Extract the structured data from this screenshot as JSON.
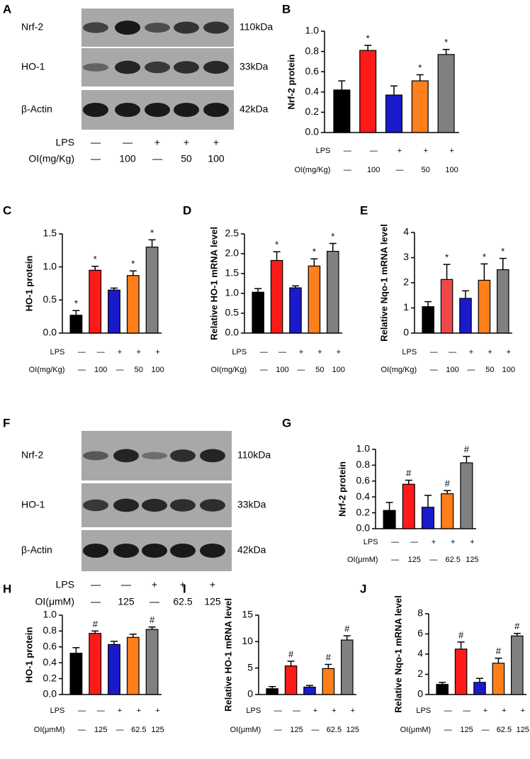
{
  "blots": [
    {
      "panel": "A",
      "rows": [
        {
          "label": "Nrf-2",
          "size": "110kDa"
        },
        {
          "label": "HO-1",
          "size": "33kDa"
        },
        {
          "label": "β-Actin",
          "size": "42kDa"
        }
      ],
      "conditions": [
        {
          "label": "LPS",
          "values": [
            "—",
            "—",
            "+",
            "+",
            "+"
          ]
        },
        {
          "label": "OI(mg/Kg)",
          "values": [
            "—",
            "100",
            "—",
            "50",
            "100"
          ]
        }
      ]
    },
    {
      "panel": "F",
      "rows": [
        {
          "label": "Nrf-2",
          "size": "110kDa"
        },
        {
          "label": "HO-1",
          "size": "33kDa"
        },
        {
          "label": "β-Actin",
          "size": "42kDa"
        }
      ],
      "conditions": [
        {
          "label": "LPS",
          "values": [
            "—",
            "—",
            "+",
            "+",
            "+"
          ]
        },
        {
          "label": "OI(μmM)",
          "values": [
            "—",
            "125",
            "—",
            "62.5",
            "125"
          ]
        }
      ]
    }
  ],
  "chart_data": [
    {
      "type": "bar",
      "panel": "B",
      "ylabel": "Nrf-2 protein",
      "colors": [
        "#000000",
        "#ff1a1a",
        "#1a1acc",
        "#ff7f1a",
        "#808080"
      ],
      "conditions": [
        {
          "label": "LPS",
          "values": [
            "—",
            "—",
            "+",
            "+",
            "+"
          ]
        },
        {
          "label": "OI(mg/Kg)",
          "values": [
            "—",
            "100",
            "—",
            "50",
            "100"
          ]
        }
      ],
      "values": [
        0.42,
        0.81,
        0.37,
        0.51,
        0.77
      ],
      "errors": [
        0.09,
        0.05,
        0.09,
        0.06,
        0.05
      ],
      "annotations": [
        null,
        "*",
        null,
        "*",
        "*"
      ],
      "ylim": [
        0,
        1.0
      ],
      "yticks": [
        {
          "value": 0,
          "label": "0.0"
        },
        0.2,
        0.4,
        0.6,
        0.8,
        {
          "value": 1.0,
          "label": "1.0"
        }
      ]
    },
    {
      "type": "bar",
      "panel": "C",
      "ylabel": "HO-1 protein",
      "colors": [
        "#000000",
        "#ff1a1a",
        "#1a1acc",
        "#ff7f1a",
        "#808080"
      ],
      "conditions": [
        {
          "label": "LPS",
          "values": [
            "—",
            "—",
            "+",
            "+",
            "+"
          ]
        },
        {
          "label": "OI(mg/Kg)",
          "values": [
            "—",
            "100",
            "—",
            "50",
            "100"
          ]
        }
      ],
      "values": [
        0.27,
        0.95,
        0.65,
        0.87,
        1.3
      ],
      "errors": [
        0.07,
        0.06,
        0.03,
        0.07,
        0.11
      ],
      "annotations": [
        "*",
        "*",
        null,
        "*",
        "*"
      ],
      "ylim": [
        0,
        1.5
      ],
      "yticks": [
        {
          "value": 0,
          "label": "0.0"
        },
        0.5,
        {
          "value": 1.0,
          "label": "1.0"
        },
        1.5
      ]
    },
    {
      "type": "bar",
      "panel": "D",
      "ylabel": "Relative HO-1 mRNA level",
      "colors": [
        "#000000",
        "#ff1a1a",
        "#1a1acc",
        "#ff7f1a",
        "#808080"
      ],
      "conditions": [
        {
          "label": "LPS",
          "values": [
            "—",
            "—",
            "+",
            "+",
            "+"
          ]
        },
        {
          "label": "OI(mg/Kg)",
          "values": [
            "—",
            "100",
            "—",
            "50",
            "100"
          ]
        }
      ],
      "values": [
        1.03,
        1.83,
        1.14,
        1.69,
        2.06
      ],
      "errors": [
        0.09,
        0.22,
        0.05,
        0.18,
        0.2
      ],
      "annotations": [
        null,
        "*",
        null,
        "*",
        "*"
      ],
      "ylim": [
        0,
        2.5
      ],
      "yticks": [
        {
          "value": 0,
          "label": "0.0"
        },
        0.5,
        {
          "value": 1.0,
          "label": "1.0"
        },
        1.5,
        {
          "value": 2.0,
          "label": "2.0"
        },
        2.5
      ]
    },
    {
      "type": "bar",
      "panel": "E",
      "ylabel": "Relative Nqo-1 mRNA level",
      "colors": [
        "#000000",
        "#f04848",
        "#1a1acc",
        "#ff7f1a",
        "#808080"
      ],
      "conditions": [
        {
          "label": "LPS",
          "values": [
            "—",
            "—",
            "+",
            "+",
            "+"
          ]
        },
        {
          "label": "OI(mg/Kg)",
          "values": [
            "—",
            "100",
            "—",
            "50",
            "100"
          ]
        }
      ],
      "values": [
        1.05,
        2.13,
        1.38,
        2.1,
        2.52
      ],
      "errors": [
        0.2,
        0.6,
        0.3,
        0.65,
        0.45
      ],
      "annotations": [
        null,
        "*",
        null,
        "*",
        "*"
      ],
      "ylim": [
        0,
        4
      ],
      "yticks": [
        0,
        1,
        2,
        3,
        4
      ]
    },
    {
      "type": "bar",
      "panel": "G",
      "ylabel": "Nrf-2 protein",
      "colors": [
        "#000000",
        "#ff1a1a",
        "#1a1acc",
        "#ff7f1a",
        "#808080"
      ],
      "conditions": [
        {
          "label": "LPS",
          "values": [
            "—",
            "—",
            "+",
            "+",
            "+"
          ]
        },
        {
          "label": "OI(μmM)",
          "values": [
            "—",
            "125",
            "—",
            "62.5",
            "125"
          ]
        }
      ],
      "values": [
        0.23,
        0.56,
        0.27,
        0.44,
        0.83
      ],
      "errors": [
        0.1,
        0.05,
        0.15,
        0.04,
        0.08
      ],
      "annotations": [
        null,
        "#",
        null,
        "#",
        "#"
      ],
      "ylim": [
        0,
        1.0
      ],
      "yticks": [
        {
          "value": 0,
          "label": "0.0"
        },
        0.2,
        0.4,
        0.6,
        0.8,
        {
          "value": 1.0,
          "label": "1.0"
        }
      ]
    },
    {
      "type": "bar",
      "panel": "H",
      "ylabel": "HO-1 protein",
      "colors": [
        "#000000",
        "#ff1a1a",
        "#1a1acc",
        "#ff7f1a",
        "#808080"
      ],
      "conditions": [
        {
          "label": "LPS",
          "values": [
            "—",
            "—",
            "+",
            "+",
            "+"
          ]
        },
        {
          "label": "OI(μmM)",
          "values": [
            "—",
            "125",
            "—",
            "62.5",
            "125"
          ]
        }
      ],
      "values": [
        0.52,
        0.77,
        0.63,
        0.72,
        0.82
      ],
      "errors": [
        0.07,
        0.03,
        0.04,
        0.04,
        0.03
      ],
      "annotations": [
        null,
        "#",
        null,
        null,
        "#"
      ],
      "ylim": [
        0,
        1.0
      ],
      "yticks": [
        {
          "value": 0,
          "label": "0.0"
        },
        0.2,
        0.4,
        0.6,
        0.8,
        {
          "value": 1.0,
          "label": "1.0"
        }
      ]
    },
    {
      "type": "bar",
      "panel": "I",
      "ylabel": "Relative HO-1 mRNA level",
      "colors": [
        "#000000",
        "#ff1a1a",
        "#1a1acc",
        "#ff7f1a",
        "#808080"
      ],
      "conditions": [
        {
          "label": "LPS",
          "values": [
            "—",
            "—",
            "+",
            "+",
            "+"
          ]
        },
        {
          "label": "OI(μmM)",
          "values": [
            "—",
            "125",
            "—",
            "62.5",
            "125"
          ]
        }
      ],
      "values": [
        1.1,
        5.4,
        1.4,
        4.9,
        10.3
      ],
      "errors": [
        0.4,
        0.9,
        0.3,
        0.8,
        0.8
      ],
      "annotations": [
        null,
        "#",
        null,
        "#",
        "#"
      ],
      "ylim": [
        0,
        15
      ],
      "yticks": [
        0,
        5,
        10,
        15
      ]
    },
    {
      "type": "bar",
      "panel": "J",
      "ylabel": "Relative Nqo-1 mRNA level",
      "colors": [
        "#000000",
        "#ff1a1a",
        "#1a1acc",
        "#ff7f1a",
        "#808080"
      ],
      "conditions": [
        {
          "label": "LPS",
          "values": [
            "—",
            "—",
            "+",
            "+",
            "+"
          ]
        },
        {
          "label": "OI(μmM)",
          "values": [
            "—",
            "125",
            "—",
            "62.5",
            "125"
          ]
        }
      ],
      "values": [
        1.0,
        4.5,
        1.2,
        3.1,
        5.8
      ],
      "errors": [
        0.2,
        0.7,
        0.4,
        0.5,
        0.25
      ],
      "annotations": [
        null,
        "#",
        null,
        "#",
        "#"
      ],
      "ylim": [
        0,
        8
      ],
      "yticks": [
        0,
        2,
        4,
        6,
        8
      ]
    }
  ]
}
